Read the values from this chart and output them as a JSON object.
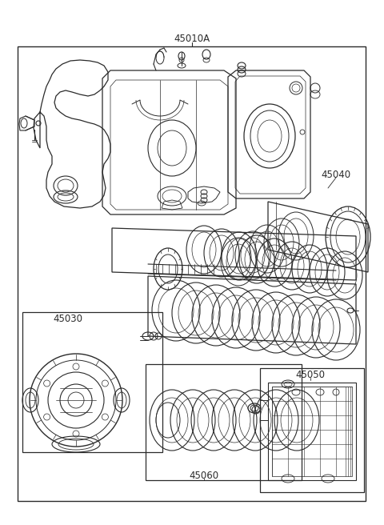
{
  "background_color": "#ffffff",
  "line_color": "#2a2a2a",
  "text_color": "#2a2a2a",
  "fig_width": 4.8,
  "fig_height": 6.56,
  "dpi": 100,
  "label_main": "45010A",
  "label_45040": "45040",
  "label_45030": "45030",
  "label_45050": "45050",
  "label_45060": "45060"
}
